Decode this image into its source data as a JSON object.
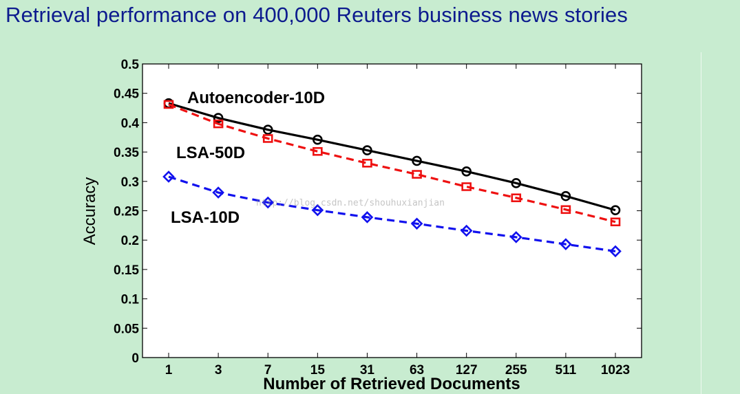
{
  "title": "Retrieval performance on 400,000 Reuters business news stories",
  "watermark": "http://blog.csdn.net/shouhuxianjian",
  "colors": {
    "background": "#c8ecd0",
    "title": "#0d1b8e",
    "plot_area": "#ffffff",
    "axis": "#000000"
  },
  "chart_data": {
    "type": "line",
    "title": "",
    "xlabel": "Number of Retrieved Documents",
    "ylabel": "Accuracy",
    "categories": [
      "1",
      "3",
      "7",
      "15",
      "31",
      "63",
      "127",
      "255",
      "511",
      "1023"
    ],
    "ylim": [
      0,
      0.5
    ],
    "yticks": [
      "0",
      "0.05",
      "0.1",
      "0.15",
      "0.2",
      "0.25",
      "0.3",
      "0.35",
      "0.4",
      "0.45",
      "0.5"
    ],
    "grid": false,
    "series": [
      {
        "name": "Autoencoder-10D",
        "color": "#000000",
        "line_style": "solid",
        "marker": "circle",
        "values": [
          0.433,
          0.408,
          0.388,
          0.371,
          0.353,
          0.335,
          0.317,
          0.297,
          0.275,
          0.251
        ]
      },
      {
        "name": "LSA-50D",
        "color": "#ee1111",
        "line_style": "dashed",
        "marker": "square",
        "values": [
          0.431,
          0.398,
          0.373,
          0.351,
          0.331,
          0.312,
          0.291,
          0.272,
          0.252,
          0.231
        ]
      },
      {
        "name": "LSA-10D",
        "color": "#1111ee",
        "line_style": "dashed",
        "marker": "diamond",
        "values": [
          0.308,
          0.281,
          0.264,
          0.251,
          0.239,
          0.228,
          0.216,
          0.205,
          0.193,
          0.181
        ]
      }
    ]
  }
}
